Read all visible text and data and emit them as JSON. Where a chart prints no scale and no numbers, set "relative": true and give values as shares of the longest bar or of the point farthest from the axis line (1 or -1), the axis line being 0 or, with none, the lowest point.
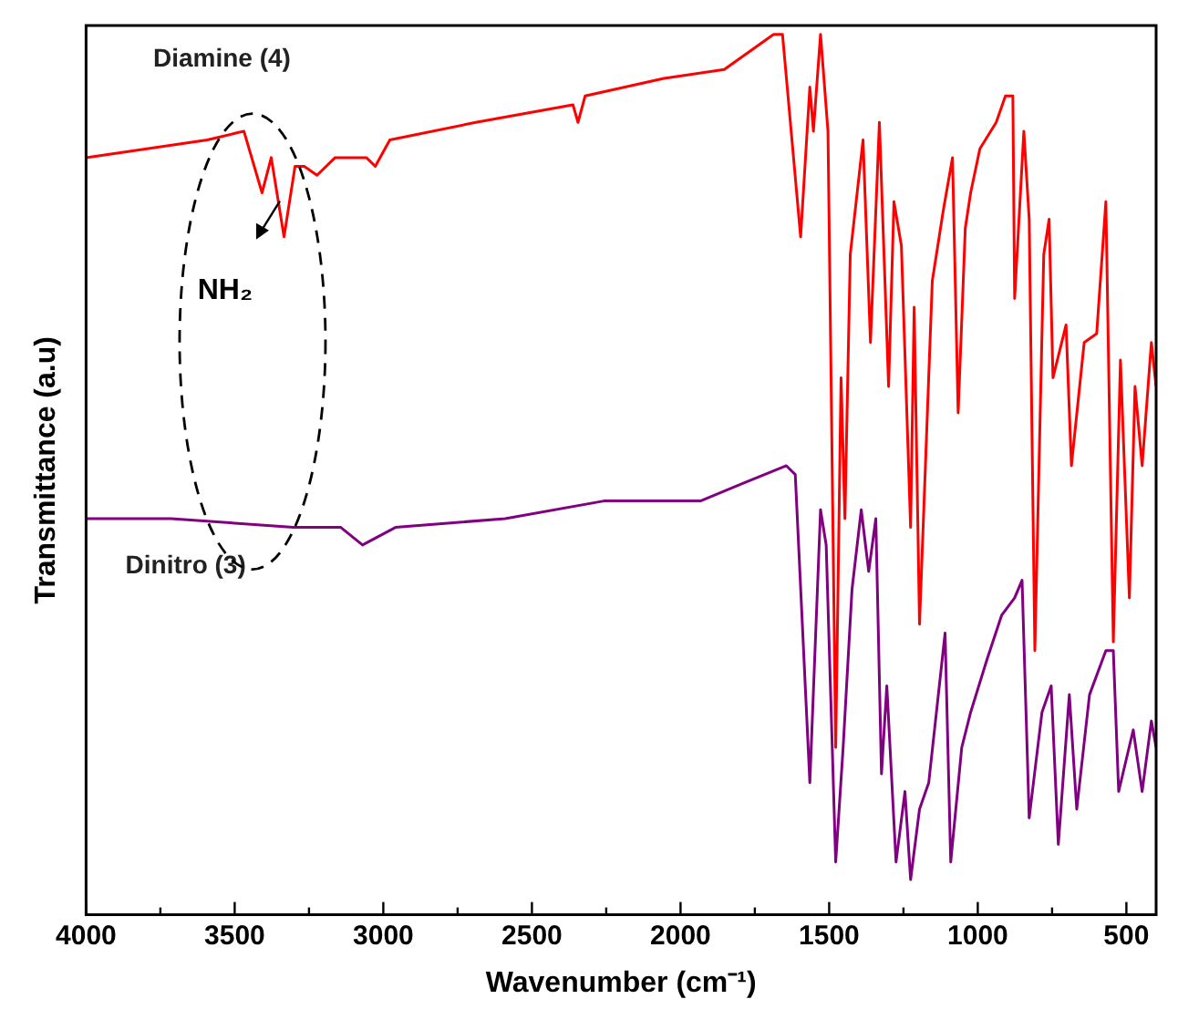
{
  "chart_data": {
    "type": "line",
    "xlabel": "Wavenumber (cm⁻¹)",
    "ylabel": "Transmittance (a.u)",
    "relative": true,
    "xlim": [
      4000,
      400
    ],
    "xticks": [
      4000,
      {
        "value": 3750,
        "label": null
      },
      3500,
      {
        "value": 3250,
        "label": null
      },
      3000,
      {
        "value": 2750,
        "label": null
      },
      2500,
      {
        "value": 2250,
        "label": null
      },
      2000,
      {
        "value": 1750,
        "label": null
      },
      1500,
      {
        "value": 1250,
        "label": null
      },
      1000,
      {
        "value": 750,
        "label": null
      },
      500
    ],
    "legend": false,
    "grid": false,
    "marker": "none",
    "line_style": "solid",
    "annotations": [
      "NH₂"
    ],
    "series": [
      {
        "name": "Diamine (4)",
        "color": "#ff0000",
        "x": [
          4000,
          3592,
          3469,
          3408,
          3377,
          3334,
          3297,
          3266,
          3223,
          3162,
          3057,
          3027,
          2978,
          2689,
          2362,
          2345,
          2321,
          2056,
          1853,
          1687,
          1657,
          1596,
          1565,
          1553,
          1529,
          1504,
          1478,
          1460,
          1447,
          1429,
          1386,
          1361,
          1331,
          1300,
          1282,
          1257,
          1226,
          1214,
          1196,
          1153,
          1116,
          1085,
          1066,
          1042,
          1024,
          993,
          938,
          907,
          882,
          876,
          845,
          827,
          808,
          778,
          760,
          747,
          703,
          685,
          642,
          600,
          569,
          544,
          520,
          490,
          471,
          447,
          416,
          400
        ],
        "values": [
          0.86,
          0.88,
          0.89,
          0.82,
          0.86,
          0.77,
          0.85,
          0.85,
          0.84,
          0.86,
          0.86,
          0.85,
          0.88,
          0.9,
          0.92,
          0.9,
          0.93,
          0.95,
          0.96,
          1.0,
          1.0,
          0.77,
          0.94,
          0.89,
          1.0,
          0.89,
          0.19,
          0.61,
          0.45,
          0.75,
          0.88,
          0.65,
          0.9,
          0.6,
          0.81,
          0.76,
          0.44,
          0.69,
          0.33,
          0.72,
          0.8,
          0.86,
          0.57,
          0.78,
          0.82,
          0.87,
          0.9,
          0.93,
          0.93,
          0.7,
          0.89,
          0.79,
          0.3,
          0.75,
          0.79,
          0.61,
          0.67,
          0.51,
          0.65,
          0.66,
          0.81,
          0.31,
          0.63,
          0.36,
          0.6,
          0.51,
          0.65,
          0.6
        ]
      },
      {
        "name": "Dinitro (3)",
        "color": "#800080",
        "x": [
          4000,
          3714,
          3303,
          3143,
          3070,
          2959,
          2590,
          2258,
          2056,
          1933,
          1791,
          1644,
          1614,
          1565,
          1529,
          1510,
          1478,
          1453,
          1423,
          1392,
          1367,
          1343,
          1324,
          1306,
          1275,
          1245,
          1226,
          1196,
          1165,
          1110,
          1091,
          1054,
          1024,
          969,
          920,
          876,
          851,
          827,
          784,
          753,
          729,
          692,
          667,
          624,
          569,
          544,
          526,
          477,
          447,
          416,
          400
        ],
        "values": [
          0.45,
          0.45,
          0.44,
          0.44,
          0.42,
          0.44,
          0.45,
          0.47,
          0.47,
          0.47,
          0.49,
          0.51,
          0.5,
          0.15,
          0.46,
          0.42,
          0.06,
          0.19,
          0.37,
          0.46,
          0.39,
          0.45,
          0.16,
          0.26,
          0.06,
          0.14,
          0.04,
          0.12,
          0.15,
          0.32,
          0.06,
          0.19,
          0.23,
          0.29,
          0.34,
          0.36,
          0.38,
          0.11,
          0.23,
          0.26,
          0.08,
          0.25,
          0.12,
          0.25,
          0.3,
          0.3,
          0.14,
          0.21,
          0.14,
          0.22,
          0.19
        ]
      }
    ]
  }
}
